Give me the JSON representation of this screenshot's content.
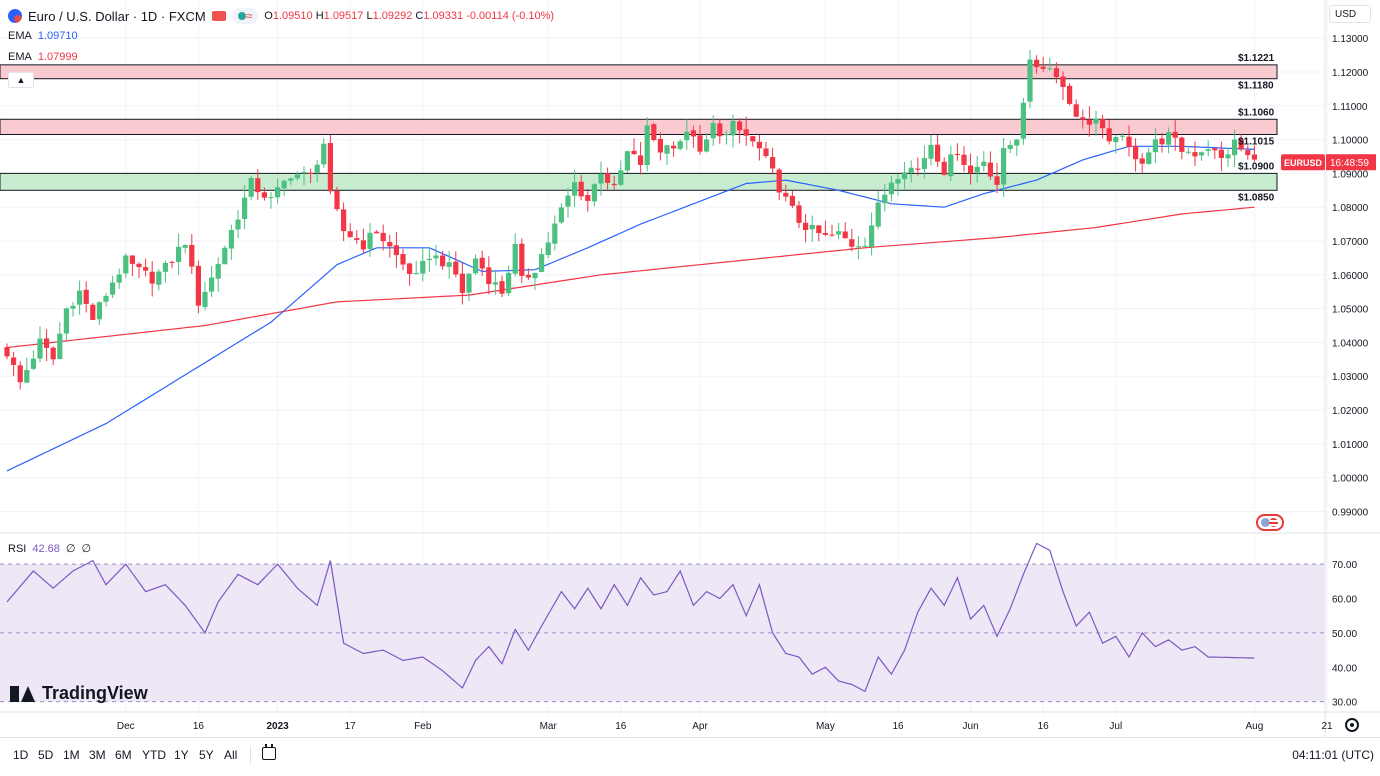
{
  "header": {
    "title": "Euro / U.S. Dollar · 1D · FXCM",
    "ohlc": {
      "o_label": "O",
      "o": "1.09510",
      "h_label": "H",
      "h": "1.09517",
      "l_label": "L",
      "l": "1.09292",
      "c_label": "C",
      "c": "1.09331",
      "change": "-0.00114 (-0.10%)"
    },
    "ema1_label": "EMA",
    "ema1_value": "1.09710",
    "ema2_label": "EMA",
    "ema2_value": "1.07999",
    "currency": "USD"
  },
  "colors": {
    "up": "#26a69a",
    "up_fill": "#4bc081",
    "down": "#f23645",
    "ema_fast": "#2962ff",
    "ema_slow": "#f23645",
    "rsi": "#7e57c2",
    "rsi_band": "#ede7f6",
    "resistance_zone": "#f9cbd0",
    "support_zone": "#c8ecd0"
  },
  "icons": {
    "symbol": "euro-dollar-icon",
    "flag": "flag-icon",
    "market": "market-status-icon",
    "calendar": "calendar-icon",
    "settings": "settings-icon",
    "collapse": "chevron-up-icon"
  },
  "rsi_panel": {
    "label": "RSI",
    "value": "42.68",
    "extra1": "∅",
    "extra2": "∅"
  },
  "watermark": "TradingView",
  "bottom_bar": {
    "timeframes": [
      "1D",
      "5D",
      "1M",
      "3M",
      "6M",
      "YTD",
      "1Y",
      "5Y",
      "All"
    ],
    "clock": "04:11:01 (UTC)"
  },
  "chart_data": {
    "type": "candlestick",
    "symbol": "EURUSD",
    "last_price_label": "EURUSD",
    "countdown": "16:48:59",
    "price_axis": {
      "ylim": [
        0.986,
        1.133
      ],
      "ticks": [
        "1.13000",
        "1.12000",
        "1.11000",
        "1.10000",
        "1.09000",
        "1.08000",
        "1.07000",
        "1.06000",
        "1.05000",
        "1.04000",
        "1.03000",
        "1.02000",
        "1.01000",
        "1.00000",
        "0.99000"
      ],
      "tick_values": [
        1.13,
        1.12,
        1.11,
        1.1,
        1.09,
        1.08,
        1.07,
        1.06,
        1.05,
        1.04,
        1.03,
        1.02,
        1.01,
        1.0,
        0.99
      ]
    },
    "time_axis": {
      "labels": [
        "Dec",
        "16",
        "2023",
        "17",
        "Feb",
        "Mar",
        "16",
        "Apr",
        "May",
        "16",
        "Jun",
        "16",
        "Jul",
        "Aug",
        "21"
      ],
      "label_bar_index": [
        18,
        29,
        41,
        52,
        63,
        82,
        93,
        105,
        124,
        135,
        146,
        157,
        168,
        189,
        200
      ]
    },
    "zones": [
      {
        "type": "resistance",
        "from": 1.118,
        "to": 1.1221
      },
      {
        "type": "resistance",
        "from": 1.1015,
        "to": 1.106
      },
      {
        "type": "support",
        "from": 1.085,
        "to": 1.09
      }
    ],
    "level_labels": [
      {
        "text": "$1.1221",
        "value": 1.1221
      },
      {
        "text": "$1.1180",
        "value": 1.118
      },
      {
        "text": "$1.1060",
        "value": 1.106
      },
      {
        "text": "$1.1015",
        "value": 1.1015
      },
      {
        "text": "$1.0900",
        "value": 1.09
      },
      {
        "text": "$1.0850",
        "value": 1.085
      }
    ],
    "bar_range": [
      0,
      189
    ],
    "close_anchors": [
      [
        0,
        1.037
      ],
      [
        2,
        1.028
      ],
      [
        5,
        1.04
      ],
      [
        7,
        1.035
      ],
      [
        9,
        1.05
      ],
      [
        11,
        1.055
      ],
      [
        13,
        1.047
      ],
      [
        16,
        1.058
      ],
      [
        18,
        1.064
      ],
      [
        20,
        1.061
      ],
      [
        22,
        1.059
      ],
      [
        24,
        1.062
      ],
      [
        27,
        1.07
      ],
      [
        29,
        1.052
      ],
      [
        31,
        1.059
      ],
      [
        34,
        1.073
      ],
      [
        37,
        1.087
      ],
      [
        40,
        1.082
      ],
      [
        43,
        1.09
      ],
      [
        46,
        1.089
      ],
      [
        48,
        1.099
      ],
      [
        49,
        1.083
      ],
      [
        51,
        1.073
      ],
      [
        54,
        1.069
      ],
      [
        56,
        1.073
      ],
      [
        58,
        1.068
      ],
      [
        60,
        1.063
      ],
      [
        62,
        1.059
      ],
      [
        64,
        1.066
      ],
      [
        66,
        1.064
      ],
      [
        68,
        1.06
      ],
      [
        69,
        1.055
      ],
      [
        71,
        1.065
      ],
      [
        73,
        1.059
      ],
      [
        75,
        1.055
      ],
      [
        77,
        1.068
      ],
      [
        78,
        1.058
      ],
      [
        80,
        1.062
      ],
      [
        82,
        1.07
      ],
      [
        84,
        1.079
      ],
      [
        86,
        1.087
      ],
      [
        88,
        1.082
      ],
      [
        90,
        1.091
      ],
      [
        92,
        1.085
      ],
      [
        94,
        1.096
      ],
      [
        96,
        1.093
      ],
      [
        97,
        1.103
      ],
      [
        99,
        1.097
      ],
      [
        100,
        1.098
      ],
      [
        102,
        1.1
      ],
      [
        104,
        1.102
      ],
      [
        105,
        1.095
      ],
      [
        107,
        1.104
      ],
      [
        109,
        1.101
      ],
      [
        110,
        1.104
      ],
      [
        112,
        1.101
      ],
      [
        114,
        1.097
      ],
      [
        116,
        1.09
      ],
      [
        118,
        1.082
      ],
      [
        120,
        1.076
      ],
      [
        122,
        1.073
      ],
      [
        124,
        1.071
      ],
      [
        126,
        1.072
      ],
      [
        128,
        1.069
      ],
      [
        130,
        1.07
      ],
      [
        132,
        1.08
      ],
      [
        134,
        1.088
      ],
      [
        136,
        1.092
      ],
      [
        138,
        1.091
      ],
      [
        140,
        1.099
      ],
      [
        142,
        1.091
      ],
      [
        144,
        1.097
      ],
      [
        146,
        1.09
      ],
      [
        148,
        1.094
      ],
      [
        150,
        1.087
      ],
      [
        151,
        1.096
      ],
      [
        153,
        1.101
      ],
      [
        154,
        1.112
      ],
      [
        155,
        1.122
      ],
      [
        157,
        1.122
      ],
      [
        159,
        1.12
      ],
      [
        161,
        1.111
      ],
      [
        163,
        1.105
      ],
      [
        165,
        1.106
      ],
      [
        167,
        1.098
      ],
      [
        168,
        1.102
      ],
      [
        170,
        1.097
      ],
      [
        172,
        1.094
      ],
      [
        174,
        1.099
      ],
      [
        176,
        1.101
      ],
      [
        178,
        1.097
      ],
      [
        180,
        1.096
      ],
      [
        182,
        1.098
      ],
      [
        184,
        1.094
      ],
      [
        186,
        1.099
      ],
      [
        188,
        1.095
      ],
      [
        189,
        1.0933
      ]
    ],
    "ema_fast_anchors": [
      [
        0,
        1.002
      ],
      [
        15,
        1.016
      ],
      [
        30,
        1.034
      ],
      [
        40,
        1.046
      ],
      [
        50,
        1.063
      ],
      [
        56,
        1.068
      ],
      [
        64,
        1.068
      ],
      [
        72,
        1.061
      ],
      [
        80,
        1.0615
      ],
      [
        88,
        1.068
      ],
      [
        96,
        1.075
      ],
      [
        104,
        1.081
      ],
      [
        112,
        1.087
      ],
      [
        118,
        1.088
      ],
      [
        126,
        1.085
      ],
      [
        134,
        1.081
      ],
      [
        142,
        1.08
      ],
      [
        148,
        1.084
      ],
      [
        156,
        1.088
      ],
      [
        163,
        1.094
      ],
      [
        170,
        1.098
      ],
      [
        178,
        1.098
      ],
      [
        189,
        1.0971
      ]
    ],
    "ema_slow_anchors": [
      [
        0,
        1.0385
      ],
      [
        30,
        1.045
      ],
      [
        50,
        1.052
      ],
      [
        70,
        1.054
      ],
      [
        90,
        1.06
      ],
      [
        110,
        1.064
      ],
      [
        130,
        1.068
      ],
      [
        150,
        1.071
      ],
      [
        165,
        1.074
      ],
      [
        178,
        1.078
      ],
      [
        189,
        1.07999
      ]
    ],
    "rsi": {
      "ylim": [
        27,
        77
      ],
      "band": [
        30,
        70
      ],
      "midline": 50,
      "ticks": [
        "70.00",
        "60.00",
        "50.00",
        "40.00",
        "30.00"
      ],
      "tick_values": [
        70,
        60,
        50,
        40,
        30
      ],
      "anchors": [
        [
          0,
          59
        ],
        [
          4,
          68
        ],
        [
          7,
          63
        ],
        [
          10,
          68
        ],
        [
          13,
          71
        ],
        [
          15,
          64
        ],
        [
          18,
          70
        ],
        [
          21,
          62
        ],
        [
          24,
          64
        ],
        [
          27,
          58
        ],
        [
          30,
          50
        ],
        [
          32,
          59
        ],
        [
          35,
          67
        ],
        [
          38,
          64
        ],
        [
          41,
          70
        ],
        [
          44,
          63
        ],
        [
          47,
          58
        ],
        [
          49,
          71
        ],
        [
          51,
          47
        ],
        [
          54,
          44
        ],
        [
          57,
          45
        ],
        [
          60,
          42
        ],
        [
          63,
          43
        ],
        [
          66,
          39
        ],
        [
          69,
          34
        ],
        [
          71,
          42
        ],
        [
          73,
          46
        ],
        [
          75,
          41
        ],
        [
          77,
          51
        ],
        [
          79,
          45
        ],
        [
          81,
          52
        ],
        [
          84,
          62
        ],
        [
          86,
          57
        ],
        [
          88,
          63
        ],
        [
          90,
          57
        ],
        [
          92,
          64
        ],
        [
          94,
          58
        ],
        [
          96,
          66
        ],
        [
          98,
          61
        ],
        [
          100,
          62
        ],
        [
          102,
          68
        ],
        [
          104,
          58
        ],
        [
          106,
          62
        ],
        [
          108,
          60
        ],
        [
          110,
          64
        ],
        [
          112,
          55
        ],
        [
          114,
          64
        ],
        [
          116,
          50
        ],
        [
          118,
          44
        ],
        [
          120,
          43
        ],
        [
          122,
          38
        ],
        [
          124,
          40
        ],
        [
          126,
          36
        ],
        [
          128,
          35
        ],
        [
          130,
          33
        ],
        [
          132,
          43
        ],
        [
          134,
          38
        ],
        [
          136,
          45
        ],
        [
          138,
          56
        ],
        [
          140,
          63
        ],
        [
          142,
          58
        ],
        [
          144,
          66
        ],
        [
          146,
          54
        ],
        [
          148,
          58
        ],
        [
          150,
          49
        ],
        [
          152,
          57
        ],
        [
          154,
          67
        ],
        [
          156,
          76
        ],
        [
          158,
          74
        ],
        [
          160,
          62
        ],
        [
          162,
          52
        ],
        [
          164,
          56
        ],
        [
          166,
          47
        ],
        [
          168,
          49
        ],
        [
          170,
          43
        ],
        [
          172,
          50
        ],
        [
          174,
          46
        ],
        [
          176,
          48
        ],
        [
          178,
          45
        ],
        [
          180,
          46
        ],
        [
          182,
          43
        ],
        [
          189,
          42.68
        ]
      ]
    }
  }
}
